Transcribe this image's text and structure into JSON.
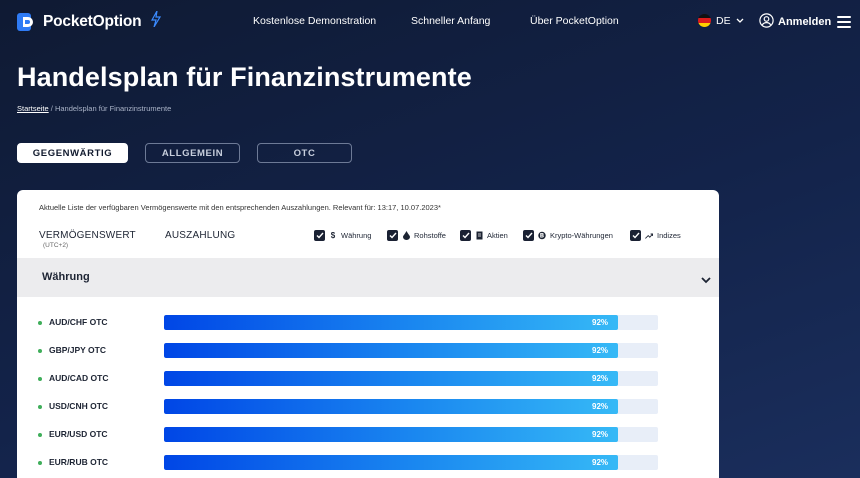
{
  "header": {
    "brand": "PocketOption",
    "nav": [
      "Kostenlose Demonstration",
      "Schneller Anfang",
      "Über PocketOption"
    ],
    "language": "DE",
    "login_label": "Anmelden"
  },
  "page": {
    "title": "Handelsplan für Finanzinstrumente",
    "breadcrumb_home": "Startseite",
    "breadcrumb_sep": " / ",
    "breadcrumb_current": "Handelsplan für Finanzinstrumente"
  },
  "tabs": [
    {
      "label": "GEGENWÄRTIG",
      "active": true
    },
    {
      "label": "ALLGEMEIN",
      "active": false
    },
    {
      "label": "OTC",
      "active": false
    }
  ],
  "card": {
    "note": "Aktuelle Liste der verfügbaren Vermögenswerte mit den entsprechenden Auszahlungen. Relevant für: 13:17, 10.07.2023*",
    "col_asset": "VERMÖGENSWERT",
    "col_asset_sub": "(UTC+2)",
    "col_payout": "AUSZAHLUNG",
    "filters": [
      {
        "label": "Währung",
        "icon": "dollar-icon",
        "checked": true
      },
      {
        "label": "Rohstoffe",
        "icon": "drop-icon",
        "checked": true
      },
      {
        "label": "Aktien",
        "icon": "document-icon",
        "checked": true
      },
      {
        "label": "Krypto-Währungen",
        "icon": "bitcoin-icon",
        "checked": true
      },
      {
        "label": "Indizes",
        "icon": "trend-icon",
        "checked": true
      }
    ],
    "section_title": "Währung",
    "rows": [
      {
        "asset": "AUD/CHF OTC",
        "payout": "92%",
        "payout_value": 92
      },
      {
        "asset": "GBP/JPY OTC",
        "payout": "92%",
        "payout_value": 92
      },
      {
        "asset": "AUD/CAD OTC",
        "payout": "92%",
        "payout_value": 92
      },
      {
        "asset": "USD/CNH OTC",
        "payout": "92%",
        "payout_value": 92
      },
      {
        "asset": "EUR/USD OTC",
        "payout": "92%",
        "payout_value": 92
      },
      {
        "asset": "EUR/RUB OTC",
        "payout": "92%",
        "payout_value": 92
      }
    ]
  },
  "colors": {
    "accent_blue": "#1a87f0",
    "status_green": "#3fae5a",
    "bg_dark": "#13234a"
  }
}
